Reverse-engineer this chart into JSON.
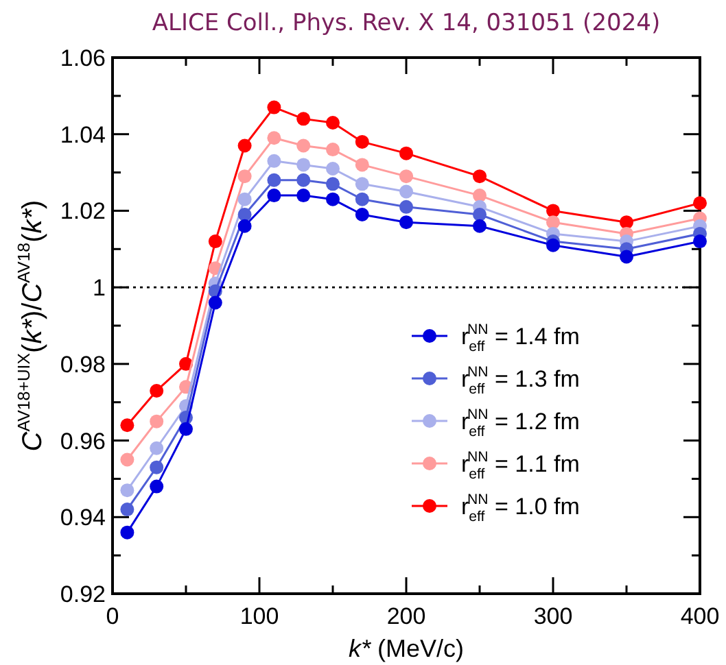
{
  "chart_data": {
    "type": "line",
    "title": "ALICE Coll., Phys. Rev. X 14, 031051 (2024)",
    "xlabel": "k* (MeV/c)",
    "ylabel": "C$^{AV18+UIX}$(k*)/C$^{AV18}$(k*)",
    "x": [
      10,
      30,
      50,
      70,
      90,
      110,
      130,
      150,
      170,
      200,
      250,
      300,
      350,
      400
    ],
    "series": [
      {
        "name": "r$_{eff}$$^{NN}$ = 1.4 fm",
        "color": "#0000dd",
        "values": [
          0.936,
          0.948,
          0.963,
          0.996,
          1.016,
          1.024,
          1.024,
          1.023,
          1.019,
          1.017,
          1.016,
          1.011,
          1.008,
          1.012
        ]
      },
      {
        "name": "r$_{eff}$$^{NN}$ = 1.3 fm",
        "color": "#4f5fd6",
        "values": [
          0.942,
          0.953,
          0.966,
          0.999,
          1.019,
          1.028,
          1.028,
          1.027,
          1.023,
          1.021,
          1.019,
          1.012,
          1.01,
          1.014
        ]
      },
      {
        "name": "r$_{eff}$$^{NN}$ = 1.2 fm",
        "color": "#a9b0ec",
        "values": [
          0.947,
          0.958,
          0.969,
          1.001,
          1.023,
          1.033,
          1.032,
          1.031,
          1.027,
          1.025,
          1.021,
          1.014,
          1.012,
          1.016
        ]
      },
      {
        "name": "r$_{eff}$$^{NN}$ = 1.1 fm",
        "color": "#ff9c9c",
        "values": [
          0.955,
          0.965,
          0.974,
          1.005,
          1.029,
          1.039,
          1.037,
          1.036,
          1.032,
          1.029,
          1.024,
          1.017,
          1.014,
          1.018
        ]
      },
      {
        "name": "r$_{eff}$$^{NN}$ = 1.0 fm",
        "color": "#ff0000",
        "values": [
          0.964,
          0.973,
          0.98,
          1.012,
          1.037,
          1.047,
          1.044,
          1.043,
          1.038,
          1.035,
          1.029,
          1.02,
          1.017,
          1.022
        ]
      }
    ],
    "xlim": [
      0,
      400
    ],
    "xticks": [
      0,
      100,
      200,
      300,
      400
    ],
    "ylim": [
      0.92,
      1.06
    ],
    "yticks": [
      0.92,
      0.94,
      0.96,
      0.98,
      1,
      1.02,
      1.04,
      1.06
    ],
    "ref_lines": [
      {
        "axis": "y",
        "value": 1,
        "color": "#000000",
        "line_style": "dotted"
      }
    ],
    "marker": "circle",
    "legend": "bottom right",
    "grid": false
  }
}
